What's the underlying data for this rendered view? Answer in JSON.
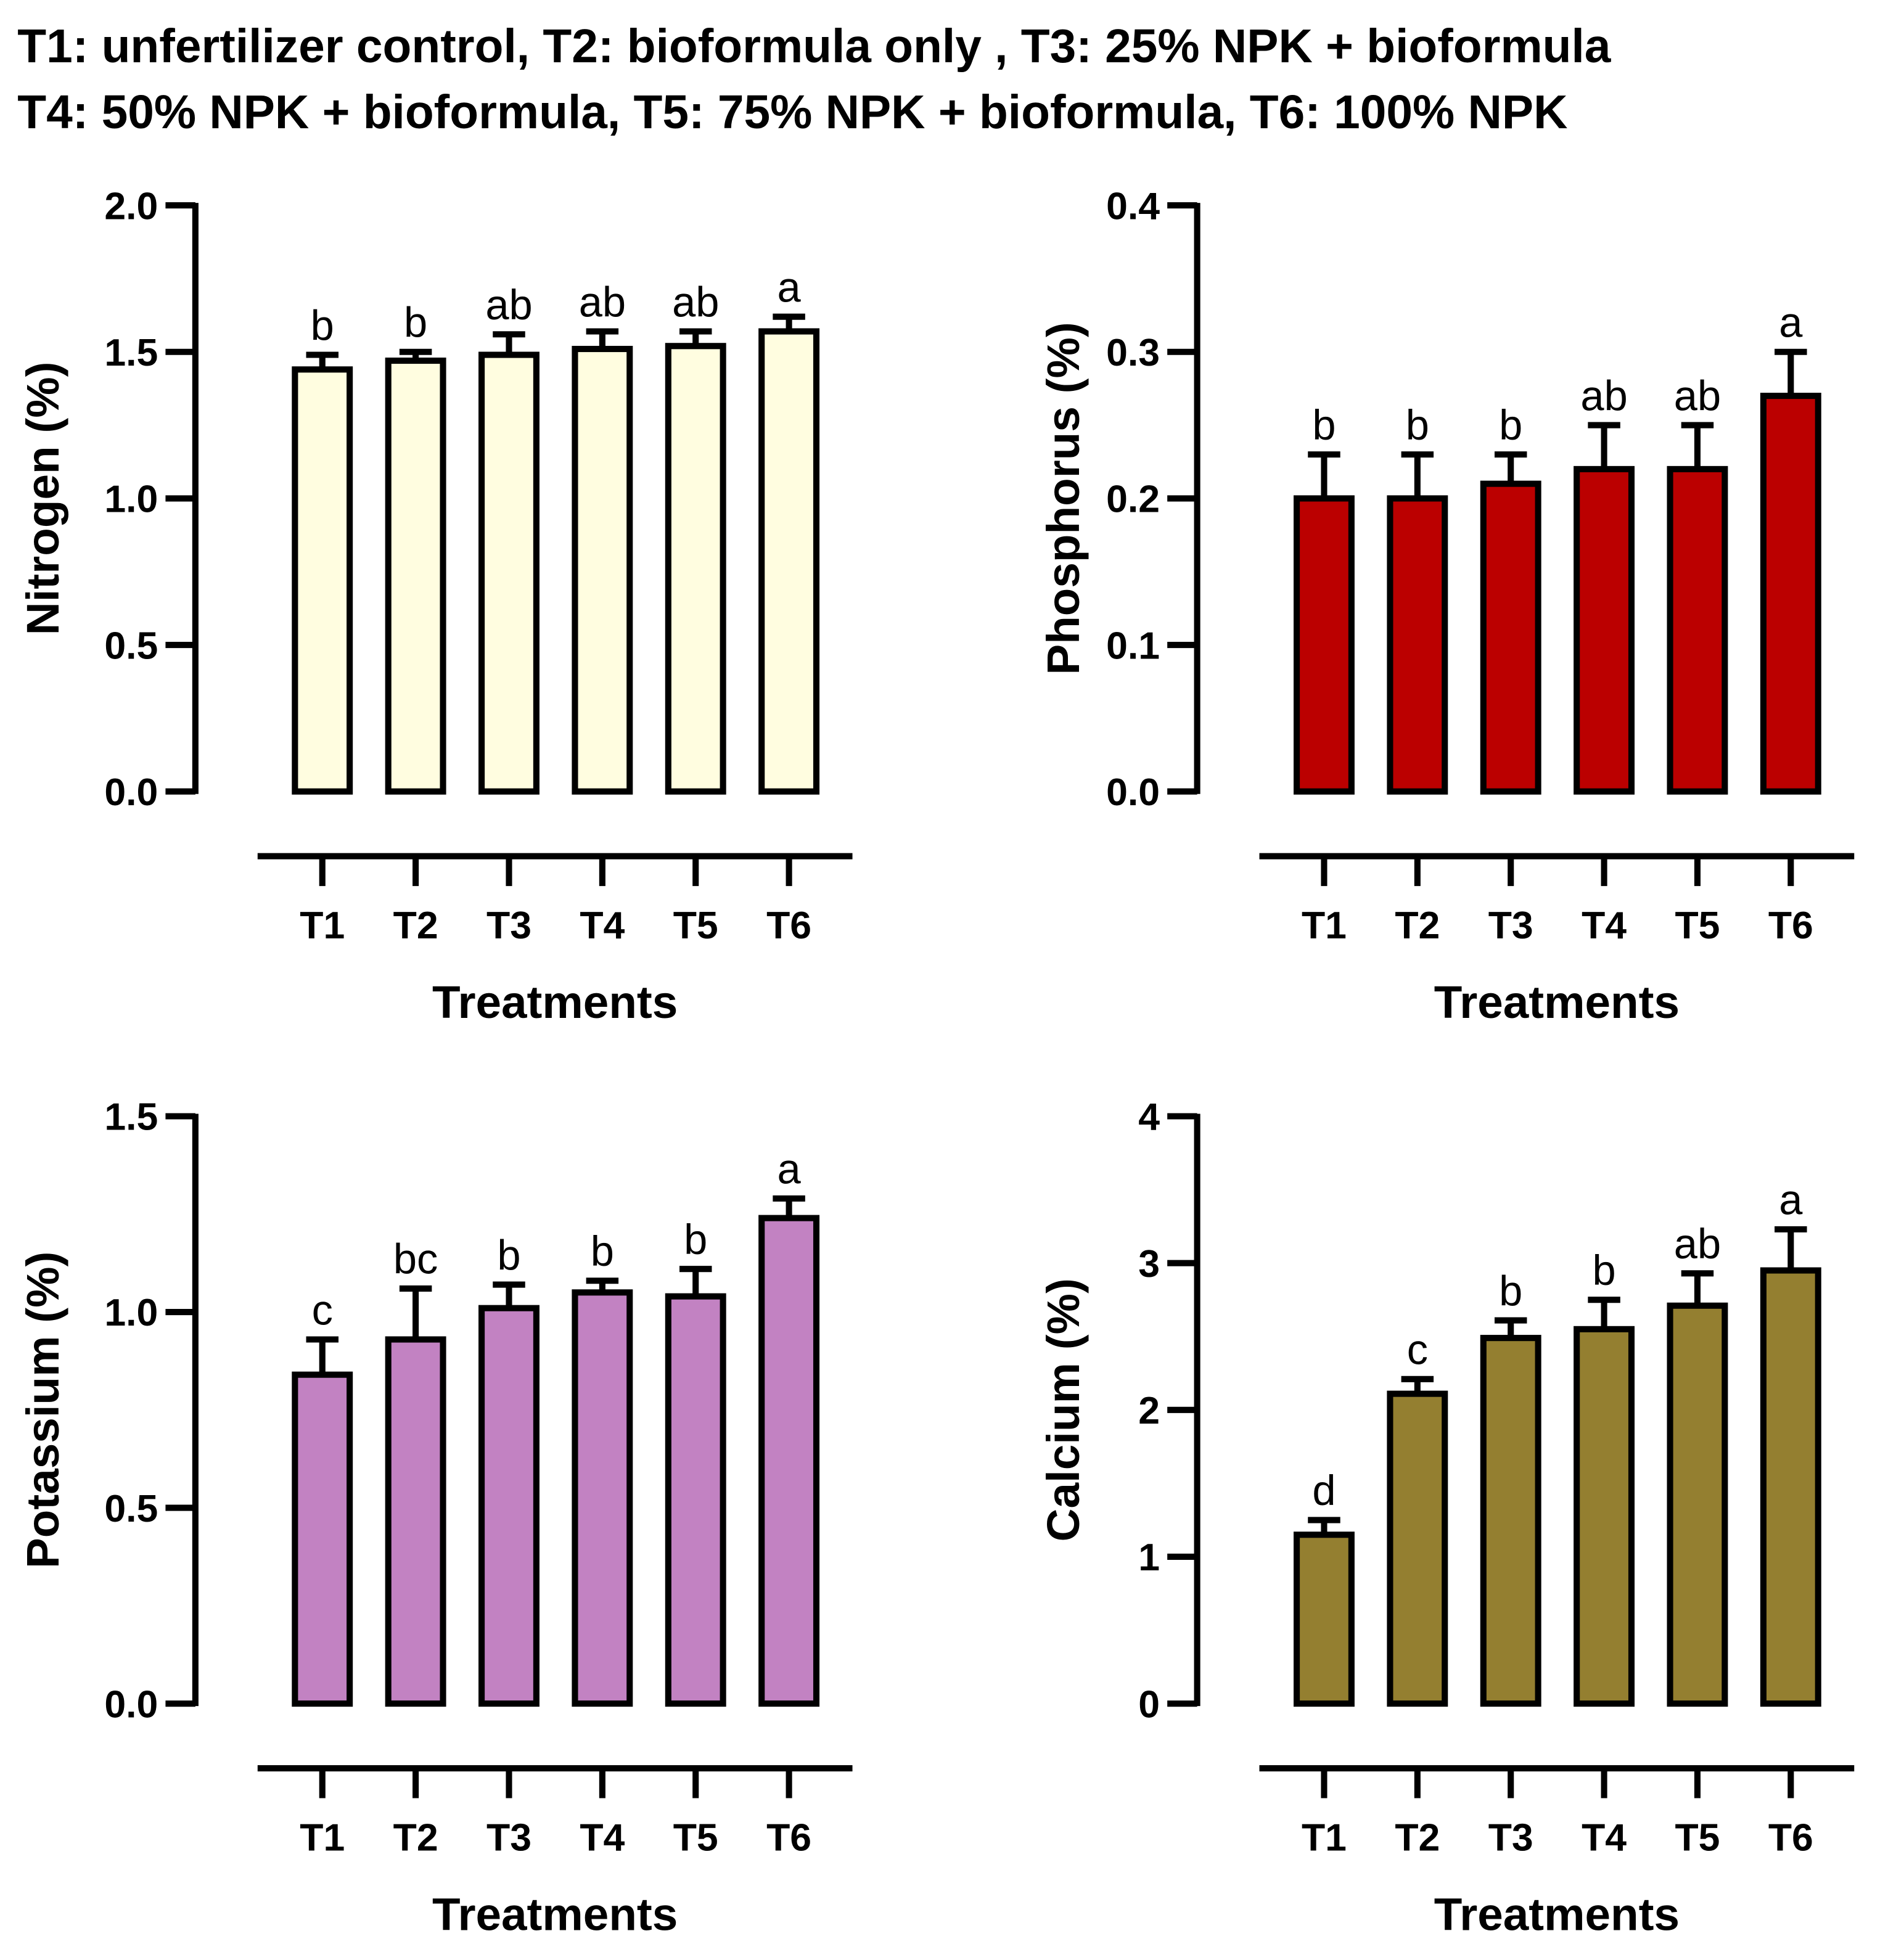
{
  "title_lines": [
    "T1: unfertilizer control, T2: bioformula only , T3: 25% NPK + bioformula",
    "T4: 50% NPK + bioformula, T5: 75% NPK + bioformula, T6: 100% NPK"
  ],
  "chart_data": [
    {
      "type": "bar",
      "categories": [
        "T1",
        "T2",
        "T3",
        "T4",
        "T5",
        "T6"
      ],
      "values": [
        1.44,
        1.47,
        1.49,
        1.51,
        1.52,
        1.57
      ],
      "errors": [
        0.05,
        0.03,
        0.07,
        0.06,
        0.05,
        0.05
      ],
      "significance_letters": [
        "b",
        "b",
        "ab",
        "ab",
        "ab",
        "a"
      ],
      "xlabel": "Treatments",
      "ylabel": "Nitrogen (%)",
      "ylim": [
        0,
        2.0
      ],
      "yticks": [
        "0.0",
        "0.5",
        "1.0",
        "1.5",
        "2.0"
      ],
      "ytick_values": [
        0,
        0.5,
        1.0,
        1.5,
        2.0
      ],
      "color": "#FFFDE0",
      "grid": false
    },
    {
      "type": "bar",
      "categories": [
        "T1",
        "T2",
        "T3",
        "T4",
        "T5",
        "T6"
      ],
      "values": [
        0.2,
        0.2,
        0.21,
        0.22,
        0.22,
        0.27
      ],
      "errors": [
        0.03,
        0.03,
        0.02,
        0.03,
        0.03,
        0.03
      ],
      "significance_letters": [
        "b",
        "b",
        "b",
        "ab",
        "ab",
        "a"
      ],
      "xlabel": "Treatments",
      "ylabel": "Phosphorus (%)",
      "ylim": [
        0,
        0.4
      ],
      "yticks": [
        "0.0",
        "0.1",
        "0.2",
        "0.3",
        "0.4"
      ],
      "ytick_values": [
        0,
        0.1,
        0.2,
        0.3,
        0.4
      ],
      "color": "#BB0000",
      "grid": false
    },
    {
      "type": "bar",
      "categories": [
        "T1",
        "T2",
        "T3",
        "T4",
        "T5",
        "T6"
      ],
      "values": [
        0.84,
        0.93,
        1.01,
        1.05,
        1.04,
        1.24
      ],
      "errors": [
        0.09,
        0.13,
        0.06,
        0.03,
        0.07,
        0.05
      ],
      "significance_letters": [
        "c",
        "bc",
        "b",
        "b",
        "b",
        "a"
      ],
      "xlabel": "Treatments",
      "ylabel": "Potassium (%)",
      "ylim": [
        0,
        1.5
      ],
      "yticks": [
        "0.0",
        "0.5",
        "1.0",
        "1.5"
      ],
      "ytick_values": [
        0,
        0.5,
        1.0,
        1.5
      ],
      "color": "#C282C2",
      "grid": false
    },
    {
      "type": "bar",
      "categories": [
        "T1",
        "T2",
        "T3",
        "T4",
        "T5",
        "T6"
      ],
      "values": [
        1.15,
        2.11,
        2.49,
        2.55,
        2.71,
        2.95
      ],
      "errors": [
        0.1,
        0.1,
        0.12,
        0.2,
        0.22,
        0.28
      ],
      "significance_letters": [
        "d",
        "c",
        "b",
        "b",
        "ab",
        "a"
      ],
      "xlabel": "Treatments",
      "ylabel": "Calcium (%)",
      "ylim": [
        0,
        4
      ],
      "yticks": [
        "0",
        "1",
        "2",
        "3",
        "4"
      ],
      "ytick_values": [
        0,
        1,
        2,
        3,
        4
      ],
      "color": "#947F30",
      "grid": false
    }
  ]
}
